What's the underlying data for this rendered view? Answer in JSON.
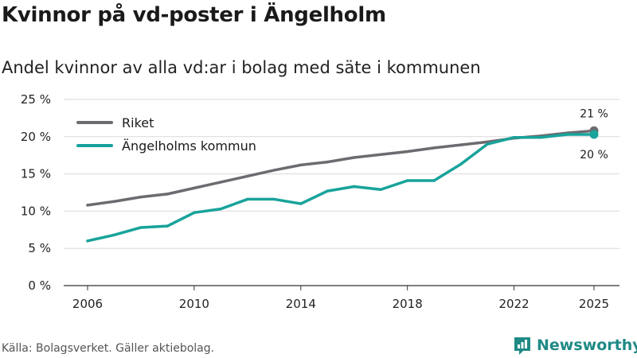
{
  "header": {
    "title": "Kvinnor på vd-poster i Ängelholm",
    "subtitle": "Andel kvinnor av alla vd:ar i bolag med säte i kommunen"
  },
  "footer": {
    "source": "Källa: Bolagsverket. Gäller aktiebolag.",
    "brand": "Newsworthy"
  },
  "chart_data": {
    "type": "line",
    "title": "Kvinnor på vd-poster i Ängelholm",
    "subtitle": "Andel kvinnor av alla vd:ar i bolag med säte i kommunen",
    "xlabel": "",
    "ylabel": "",
    "x": [
      2006,
      2007,
      2008,
      2009,
      2010,
      2011,
      2012,
      2013,
      2014,
      2015,
      2016,
      2017,
      2018,
      2019,
      2020,
      2021,
      2022,
      2023,
      2024,
      2025
    ],
    "x_ticks": [
      2006,
      2010,
      2014,
      2018,
      2022,
      2025
    ],
    "x_tick_labels": [
      "2006",
      "2010",
      "2014",
      "2018",
      "2022",
      "2025"
    ],
    "ylim": [
      0,
      25
    ],
    "y_ticks": [
      0,
      5,
      10,
      15,
      20,
      25
    ],
    "y_tick_labels": [
      "0 %",
      "5 %",
      "10 %",
      "15 %",
      "20 %",
      "25 %"
    ],
    "grid": true,
    "legend_position": "top-left",
    "series": [
      {
        "name": "Riket",
        "color": "#6d6b70",
        "values": [
          10.8,
          11.3,
          11.9,
          12.3,
          13.1,
          13.9,
          14.7,
          15.5,
          16.2,
          16.6,
          17.2,
          17.6,
          18.0,
          18.5,
          18.9,
          19.3,
          19.8,
          20.1,
          20.5,
          20.8
        ],
        "end_label": "21 %"
      },
      {
        "name": "Ängelholms kommun",
        "color": "#18a39b",
        "values": [
          6.0,
          6.8,
          7.8,
          8.0,
          9.8,
          10.3,
          11.6,
          11.6,
          11.0,
          12.7,
          13.3,
          12.9,
          14.1,
          14.1,
          16.3,
          19.0,
          19.9,
          19.9,
          20.3,
          20.3
        ],
        "end_label": "20 %"
      }
    ]
  }
}
